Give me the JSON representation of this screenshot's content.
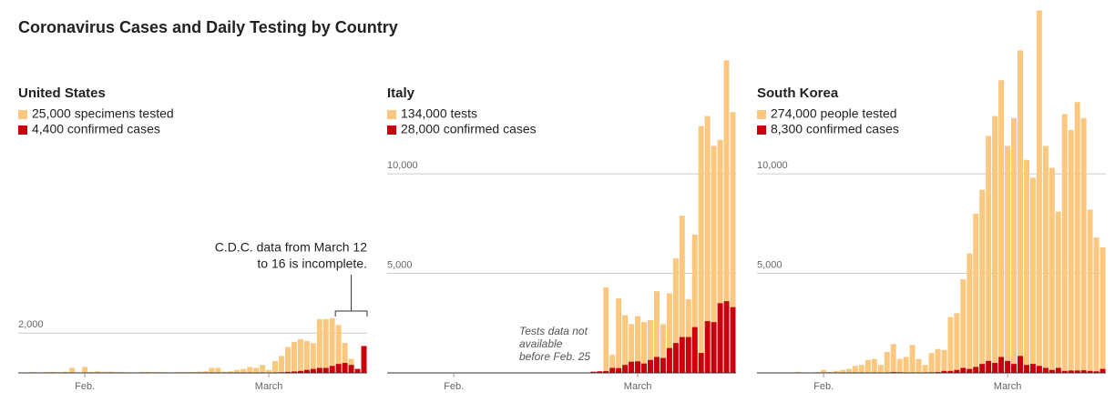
{
  "title": "Coronavirus Cases and Daily Testing by Country",
  "chart_data": [
    {
      "type": "bar",
      "title": "United States",
      "categories": [
        null,
        null,
        null,
        null,
        null,
        null,
        null,
        null,
        null,
        null,
        "Feb.",
        null,
        null,
        null,
        null,
        null,
        null,
        null,
        null,
        null,
        null,
        null,
        null,
        null,
        null,
        null,
        null,
        null,
        null,
        null,
        null,
        null,
        null,
        null,
        null,
        null,
        null,
        null,
        null,
        "March",
        null,
        null,
        null,
        null,
        null,
        null,
        null,
        null,
        null,
        null,
        null,
        null,
        null,
        null,
        null
      ],
      "series": [
        {
          "name": "25,000 specimens tested",
          "color": "#fcc77e",
          "values": [
            20,
            30,
            40,
            30,
            40,
            50,
            40,
            60,
            250,
            30,
            300,
            50,
            80,
            60,
            60,
            50,
            40,
            30,
            30,
            50,
            50,
            40,
            40,
            30,
            30,
            40,
            40,
            50,
            60,
            80,
            250,
            250,
            60,
            80,
            150,
            200,
            300,
            250,
            400,
            150,
            600,
            850,
            1300,
            1550,
            1700,
            1600,
            1500,
            2700,
            2700,
            2750,
            2400,
            1500,
            700,
            150,
            200
          ]
        },
        {
          "name": "4,400 confirmed cases",
          "color": "#c9000e",
          "values": [
            0,
            0,
            0,
            0,
            0,
            0,
            0,
            0,
            0,
            0,
            0,
            0,
            0,
            0,
            0,
            0,
            0,
            0,
            0,
            0,
            0,
            0,
            0,
            0,
            0,
            0,
            0,
            0,
            0,
            0,
            0,
            0,
            0,
            0,
            0,
            0,
            0,
            0,
            10,
            10,
            20,
            30,
            50,
            70,
            100,
            150,
            200,
            250,
            250,
            350,
            450,
            500,
            400,
            200,
            1350
          ]
        }
      ],
      "ylim": [
        0,
        18500
      ],
      "yticks": [
        {
          "value": 2000,
          "label": "2,000"
        }
      ],
      "grid": true,
      "annotation": [
        "C.D.C. data from March 12",
        "to 16 is incomplete."
      ]
    },
    {
      "type": "bar",
      "title": "Italy",
      "categories": [
        null,
        null,
        null,
        null,
        null,
        null,
        null,
        null,
        null,
        null,
        "Feb.",
        null,
        null,
        null,
        null,
        null,
        null,
        null,
        null,
        null,
        null,
        null,
        null,
        null,
        null,
        null,
        null,
        null,
        null,
        null,
        null,
        null,
        null,
        null,
        null,
        null,
        null,
        null,
        null,
        "March",
        null,
        null,
        null,
        null,
        null,
        null,
        null,
        null,
        null,
        null,
        null,
        null,
        null,
        null,
        null
      ],
      "series": [
        {
          "name": "134,000 tests",
          "color": "#fcc77e",
          "values": [
            null,
            null,
            null,
            null,
            null,
            null,
            null,
            null,
            null,
            null,
            null,
            null,
            null,
            null,
            null,
            null,
            null,
            null,
            null,
            null,
            null,
            null,
            null,
            null,
            null,
            null,
            null,
            null,
            null,
            null,
            null,
            null,
            null,
            null,
            4300,
            900,
            3750,
            2900,
            2450,
            2850,
            2550,
            2650,
            4100,
            2450,
            4000,
            5750,
            7900,
            3700,
            6950,
            12400,
            12900,
            11400,
            11700,
            15700,
            13100
          ]
        },
        {
          "name": "28,000 confirmed cases",
          "color": "#c9000e",
          "values": [
            0,
            0,
            0,
            0,
            0,
            0,
            0,
            0,
            0,
            0,
            0,
            0,
            0,
            0,
            0,
            0,
            0,
            0,
            0,
            0,
            0,
            0,
            0,
            0,
            0,
            0,
            0,
            0,
            0,
            0,
            0,
            0,
            60,
            80,
            90,
            250,
            240,
            400,
            560,
            580,
            470,
            650,
            800,
            750,
            1250,
            1500,
            1800,
            1800,
            2300,
            1000,
            2600,
            2550,
            3500,
            3600,
            3300
          ]
        }
      ],
      "ylim": [
        0,
        18500
      ],
      "yticks": [
        {
          "value": 5000,
          "label": "5,000"
        },
        {
          "value": 10000,
          "label": "10,000"
        }
      ],
      "grid": true,
      "annotation": [
        "Tests data not",
        "available",
        "before Feb. 25"
      ]
    },
    {
      "type": "bar",
      "title": "South Korea",
      "categories": [
        null,
        null,
        null,
        null,
        null,
        null,
        null,
        null,
        null,
        null,
        "Feb.",
        null,
        null,
        null,
        null,
        null,
        null,
        null,
        null,
        null,
        null,
        null,
        null,
        null,
        null,
        null,
        null,
        null,
        null,
        null,
        null,
        null,
        null,
        null,
        null,
        null,
        null,
        null,
        null,
        "March",
        null,
        null,
        null,
        null,
        null,
        null,
        null,
        null,
        null,
        null,
        null,
        null,
        null,
        null,
        null
      ],
      "series": [
        {
          "name": "274,000 people tested",
          "color": "#fcc77e",
          "values": [
            0,
            10,
            20,
            10,
            30,
            20,
            50,
            30,
            20,
            40,
            150,
            50,
            100,
            150,
            200,
            350,
            400,
            650,
            700,
            400,
            1050,
            1450,
            700,
            800,
            1400,
            700,
            400,
            1000,
            1200,
            1150,
            2800,
            3000,
            4700,
            6000,
            8000,
            9200,
            11900,
            12900,
            14700,
            11400,
            12800,
            16200,
            10700,
            9800,
            18200,
            11400,
            10300,
            8100,
            13000,
            12200,
            13600,
            12800,
            8200,
            6800,
            6300
          ]
        },
        {
          "name": "8,300 confirmed cases",
          "color": "#c9000e",
          "values": [
            0,
            0,
            0,
            0,
            0,
            0,
            0,
            0,
            0,
            0,
            0,
            0,
            0,
            0,
            0,
            0,
            0,
            0,
            0,
            0,
            20,
            40,
            30,
            20,
            20,
            20,
            20,
            30,
            40,
            100,
            100,
            150,
            250,
            200,
            300,
            450,
            600,
            500,
            800,
            600,
            450,
            850,
            400,
            450,
            350,
            250,
            150,
            250,
            100,
            120,
            120,
            130,
            100,
            80,
            200
          ]
        }
      ],
      "ylim": [
        0,
        18500
      ],
      "yticks": [
        {
          "value": 5000,
          "label": "5,000"
        },
        {
          "value": 10000,
          "label": "10,000"
        }
      ],
      "grid": true
    }
  ]
}
